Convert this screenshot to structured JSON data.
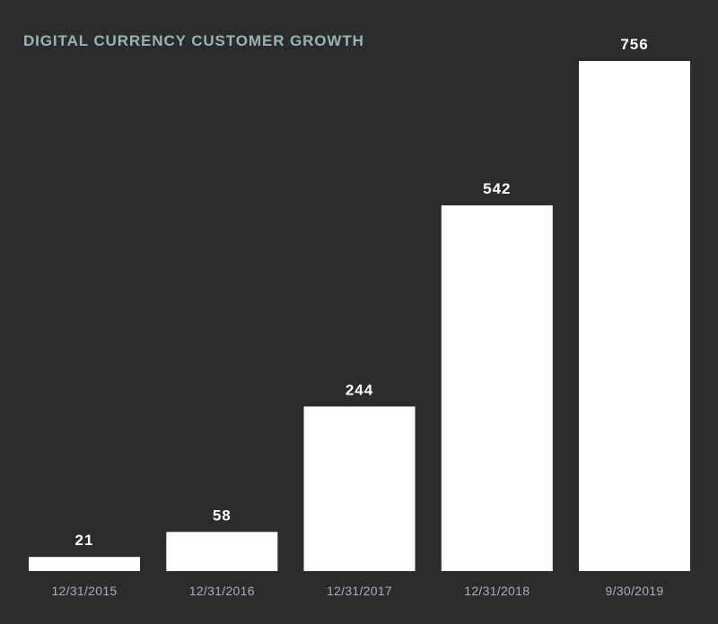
{
  "chart_data": {
    "type": "bar",
    "title": "DIGITAL CURRENCY CUSTOMER GROWTH",
    "xlabel": "",
    "ylabel": "",
    "categories": [
      "12/31/2015",
      "12/31/2016",
      "12/31/2017",
      "12/31/2018",
      "9/30/2019"
    ],
    "values": [
      21,
      58,
      244,
      542,
      756
    ],
    "data_labels": [
      "21",
      "58",
      "244",
      "542",
      "756"
    ],
    "ylim": [
      0,
      756
    ],
    "grid": false,
    "legend": "none",
    "colors": {
      "background": "#2b2c2e",
      "bar": "#ffffff",
      "title": "#9bb3b5",
      "tick_label": "#a9aeb1",
      "data_label": "#ffffff"
    }
  }
}
